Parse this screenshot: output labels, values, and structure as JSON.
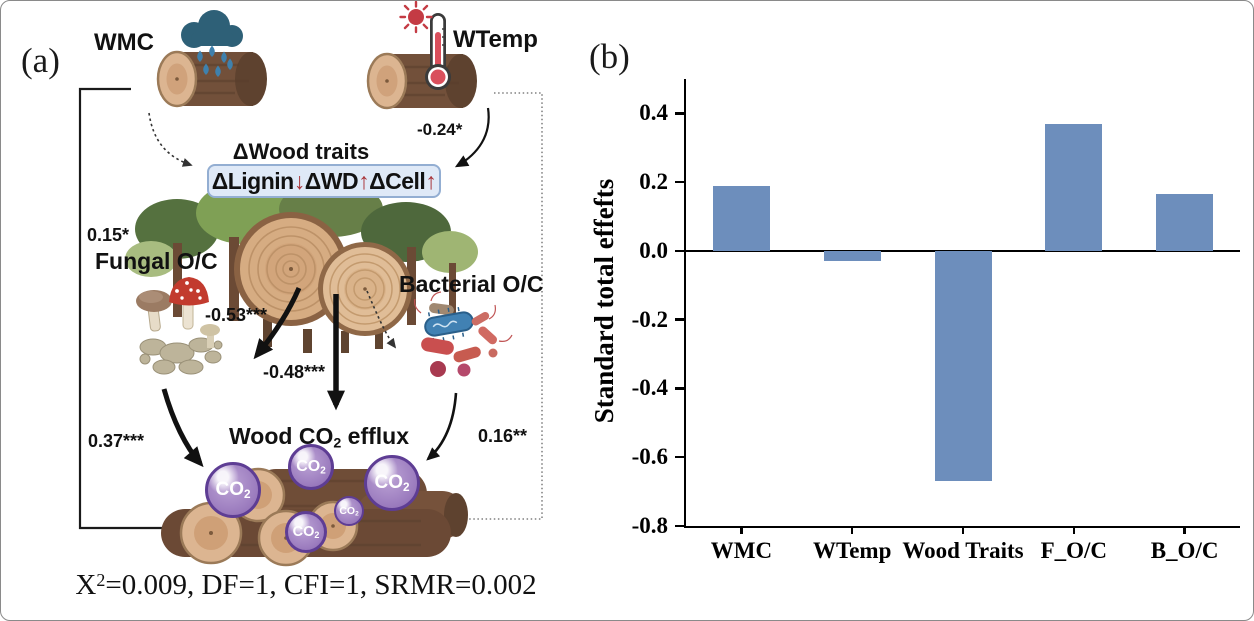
{
  "panel_a": {
    "tag": "(a)",
    "wmc_label": "WMC",
    "wtemp_label": "WTemp",
    "wood_traits_title": "ΔWood traits",
    "traits_box": {
      "lignin": "ΔLignin",
      "lignin_dir": "↓",
      "wd": "ΔWD",
      "wd_dir": "↑",
      "cell": "ΔCell",
      "cell_dir": "↑"
    },
    "fungal_label": "Fungal O/C",
    "bacterial_label": "Bacterial O/C",
    "efflux_label": {
      "pre": "Wood CO",
      "sub": "2",
      "post": " efflux"
    },
    "co2_bubble": {
      "pre": "CO",
      "sub": "2"
    },
    "paths": {
      "wmc_direct": "0.15*",
      "wtemp_traits": "-0.24*",
      "traits_fungal": "-0.53***",
      "traits_efflux": "-0.48***",
      "fungal_efflux": "0.37***",
      "bacterial_efflux": "0.16**"
    },
    "fit_stats": {
      "pre": "X",
      "sup": "2",
      "post": "=0.009, DF=1, CFI=1, SRMR=0.002"
    },
    "colors": {
      "trait_arrow": "#a93439",
      "box_fill": "#dfe9f7",
      "box_border": "#93aed2"
    }
  },
  "panel_b": {
    "tag": "(b)"
  },
  "chart_data": {
    "type": "bar",
    "categories": [
      "WMC",
      "WTemp",
      "Wood Traits",
      "F_O/C",
      "B_O/C"
    ],
    "values": [
      0.19,
      -0.03,
      -0.67,
      0.37,
      0.165
    ],
    "title": "",
    "xlabel": "",
    "ylabel": "Standard total effefts",
    "ylim": [
      -0.8,
      0.5
    ],
    "yticks": [
      0.4,
      0.2,
      0.0,
      -0.2,
      -0.4,
      -0.6,
      -0.8
    ],
    "bar_color": "#6d8ebc",
    "grid": false,
    "legend": false
  }
}
